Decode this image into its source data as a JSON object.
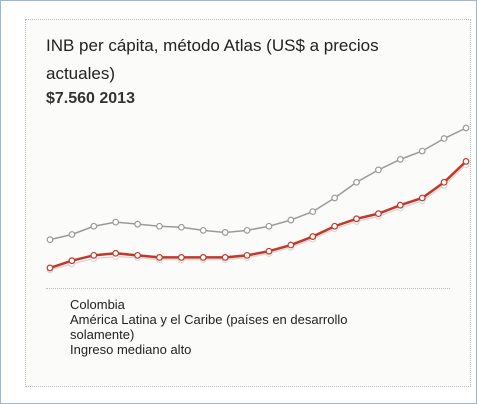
{
  "chart_data": {
    "type": "line",
    "title": "INB per cápita, método Atlas (US$ a precios actuales)",
    "subtitle": "$7.560 2013",
    "series": [
      {
        "name": "Colombia",
        "color": "#c0392b",
        "values": [
          2400,
          2750,
          3010,
          3110,
          3010,
          2910,
          2910,
          2910,
          2910,
          3010,
          3210,
          3510,
          3920,
          4420,
          4780,
          5030,
          5440,
          5790,
          6550,
          7560
        ]
      },
      {
        "name": "América Latina y  el Caribe (países en desarrollo solamente)",
        "color": "#9a9a9a",
        "values": [
          3770,
          4020,
          4420,
          4620,
          4520,
          4420,
          4370,
          4220,
          4120,
          4220,
          4420,
          4720,
          5130,
          5790,
          6550,
          7150,
          7660,
          8060,
          8670,
          9180
        ]
      },
      {
        "name": "Ingreso mediano alto",
        "color": "#d8d8d8",
        "values": [
          2300,
          2600,
          2850,
          2950,
          2900,
          2800,
          2800,
          2800,
          2800,
          2900,
          3100,
          3400,
          3800,
          4300,
          4650,
          4900,
          5300,
          5650,
          6400,
          7400
        ]
      }
    ]
  }
}
